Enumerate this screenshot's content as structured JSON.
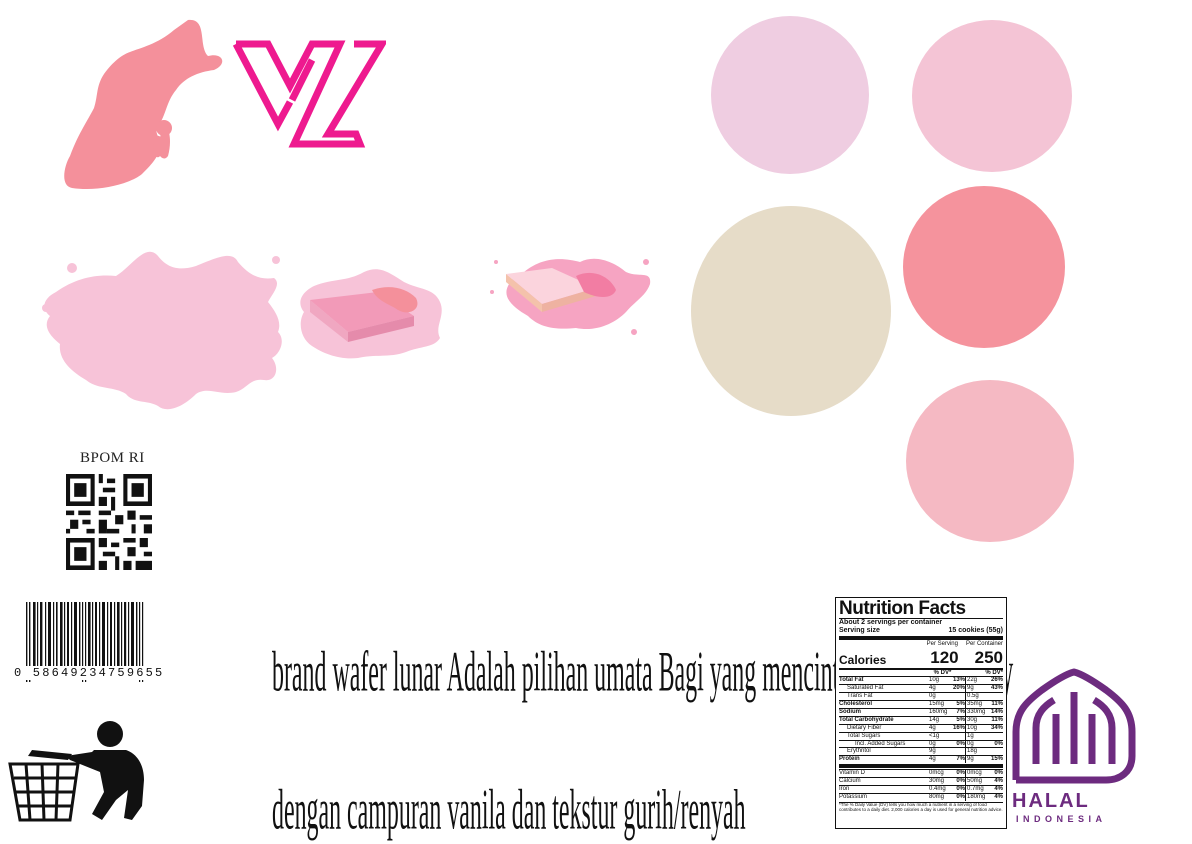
{
  "bpom_label": "BPOM RI",
  "barcode_number": "0 58649234759655",
  "tagline": {
    "line1": "brand wafer lunar Adalah pilihan umata Bagi yang mencintai rasa Strawberry",
    "line2": "dengan campuran vanila dan tekstur gurih/renyah"
  },
  "swatches": [
    "#efcde1",
    "#f4c4d5",
    "#e6dcc8",
    "#f5939d",
    "#f5b9c3"
  ],
  "colors": {
    "logo": "#ee1a8f",
    "splash": "#f7c3d8",
    "coral_splash": "#f48f9a",
    "halal": "#6d2b7f"
  },
  "nutrition": {
    "title": "Nutrition Facts",
    "servings": "About 2 servings per container",
    "serving_size_label": "Serving size",
    "serving_size_value": "15 cookies (55g)",
    "per_serving": "Per Serving",
    "per_container": "Per Container",
    "calories_label": "Calories",
    "calories_serving": "120",
    "calories_container": "250",
    "dv_header": "% DV*",
    "rows": [
      {
        "name": "Total Fat",
        "a": "10g",
        "b": "13%",
        "c": "22g",
        "d": "26%",
        "bold": true
      },
      {
        "name": "Saturated Fat",
        "a": "4g",
        "b": "20%",
        "c": "9g",
        "d": "43%",
        "indent": 1
      },
      {
        "name": "Trans Fat",
        "a": "0g",
        "b": "",
        "c": "0.5g",
        "d": "",
        "indent": 1
      },
      {
        "name": "Cholesterol",
        "a": "15mg",
        "b": "5%",
        "c": "35mg",
        "d": "11%",
        "bold": true
      },
      {
        "name": "Sodium",
        "a": "160mg",
        "b": "7%",
        "c": "330mg",
        "d": "14%",
        "bold": true
      },
      {
        "name": "Total Carbohydrate",
        "a": "14g",
        "b": "5%",
        "c": "30g",
        "d": "11%",
        "bold": true
      },
      {
        "name": "Dietary Fiber",
        "a": "4g",
        "b": "16%",
        "c": "10g",
        "d": "34%",
        "indent": 1
      },
      {
        "name": "Total Sugars",
        "a": "<1g",
        "b": "",
        "c": "1g",
        "d": "",
        "indent": 1
      },
      {
        "name": "Incl. Added Sugars",
        "a": "0g",
        "b": "0%",
        "c": "0g",
        "d": "0%",
        "indent": 2
      },
      {
        "name": "Erythritol",
        "a": "9g",
        "b": "",
        "c": "18g",
        "d": "",
        "indent": 1
      },
      {
        "name": "Protein",
        "a": "4g",
        "b": "7%",
        "c": "9g",
        "d": "15%",
        "bold": true
      }
    ],
    "vitamins": [
      {
        "name": "Vitamin D",
        "a": "0mcg",
        "b": "0%",
        "c": "0mcg",
        "d": "0%"
      },
      {
        "name": "Calcium",
        "a": "30mg",
        "b": "0%",
        "c": "50mg",
        "d": "4%"
      },
      {
        "name": "Iron",
        "a": "0.4mg",
        "b": "0%",
        "c": "0.7mg",
        "d": "4%"
      },
      {
        "name": "Potassium",
        "a": "80mg",
        "b": "0%",
        "c": "180mg",
        "d": "4%"
      }
    ],
    "footnote": "*The % Daily Value (DV) tells you how much a nutrient in a serving of food contributes to a daily diet. 2,000 calories a day is used for general nutrition advice."
  },
  "halal": {
    "label": "HALAL",
    "sub": "INDONESIA"
  }
}
